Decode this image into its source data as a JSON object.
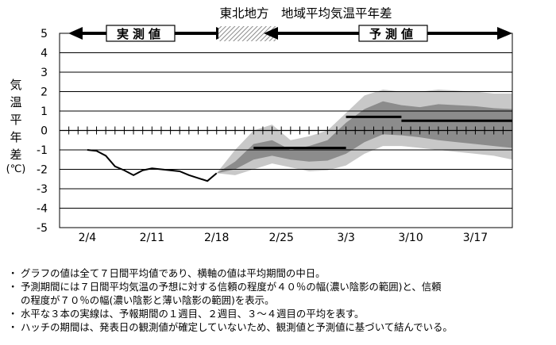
{
  "chart_data": {
    "type": "line",
    "title": "東北地方　地域平均気温平年差",
    "ylabel_chars": [
      "気",
      "温",
      "平",
      "年",
      "差"
    ],
    "yunit": "(℃)",
    "ylim": [
      -5,
      5
    ],
    "yticks": [
      "5",
      "4",
      "3",
      "2",
      "1",
      "0",
      "-1",
      "-2",
      "-3",
      "-4",
      "-5"
    ],
    "xlim": [
      "2/1",
      "3/21"
    ],
    "xtick_labels": [
      {
        "label": "2/4",
        "date": "2/4"
      },
      {
        "label": "2/11",
        "date": "2/11"
      },
      {
        "label": "2/18",
        "date": "2/18"
      },
      {
        "label": "2/25",
        "date": "2/25"
      },
      {
        "label": "3/3",
        "date": "3/3"
      },
      {
        "label": "3/10",
        "date": "3/10"
      },
      {
        "label": "3/17",
        "date": "3/17"
      }
    ],
    "grid": true,
    "period_labels": {
      "observed": "実測値",
      "forecast": "予測値"
    },
    "observed": {
      "x": [
        "2/4",
        "2/5",
        "2/6",
        "2/7",
        "2/8",
        "2/9",
        "2/10",
        "2/11",
        "2/12",
        "2/13",
        "2/14",
        "2/15",
        "2/16",
        "2/17",
        "2/18"
      ],
      "y": [
        -1.0,
        -1.05,
        -1.3,
        -1.85,
        -2.05,
        -2.3,
        -2.05,
        -1.95,
        -2.0,
        -2.05,
        -2.1,
        -2.3,
        -2.45,
        -2.6,
        -2.2
      ]
    },
    "hatch_period": {
      "start": "2/18",
      "end": "2/25"
    },
    "band_70": {
      "x": [
        "2/18",
        "2/20",
        "2/22",
        "2/24",
        "2/26",
        "2/28",
        "3/1",
        "3/3",
        "3/5",
        "3/7",
        "3/9",
        "3/11",
        "3/13",
        "3/15",
        "3/17",
        "3/19",
        "3/21"
      ],
      "upper": [
        -2.2,
        -1.0,
        0.0,
        0.3,
        -0.5,
        -0.3,
        0.0,
        0.9,
        1.8,
        2.1,
        2.0,
        2.0,
        2.1,
        2.05,
        2.0,
        1.9,
        1.9
      ],
      "lower": [
        -2.2,
        -2.3,
        -2.0,
        -1.7,
        -1.9,
        -2.1,
        -2.05,
        -1.8,
        -1.2,
        -0.8,
        -0.8,
        -0.9,
        -1.0,
        -1.1,
        -1.2,
        -1.3,
        -1.5
      ]
    },
    "band_40": {
      "x": [
        "2/18",
        "2/20",
        "2/22",
        "2/24",
        "2/26",
        "2/28",
        "3/1",
        "3/3",
        "3/5",
        "3/7",
        "3/9",
        "3/11",
        "3/13",
        "3/15",
        "3/17",
        "3/19",
        "3/21"
      ],
      "upper": [
        -2.2,
        -1.6,
        -0.7,
        -0.5,
        -1.0,
        -0.8,
        -0.5,
        0.4,
        1.1,
        1.5,
        1.3,
        1.2,
        1.35,
        1.3,
        1.25,
        1.15,
        1.1
      ],
      "lower": [
        -2.2,
        -2.0,
        -1.5,
        -1.3,
        -1.5,
        -1.6,
        -1.55,
        -1.2,
        -0.6,
        -0.2,
        -0.25,
        -0.35,
        -0.5,
        -0.6,
        -0.7,
        -0.8,
        -0.9
      ]
    },
    "weekly_means": [
      {
        "label": "1週目",
        "start": "2/22",
        "end": "3/3",
        "value": -0.9
      },
      {
        "label": "2週目",
        "start": "3/3",
        "end": "3/9",
        "value": 0.7
      },
      {
        "label": "3〜4週目",
        "start": "3/9",
        "end": "3/21",
        "value": 0.5
      }
    ]
  },
  "notes": [
    "グラフの値は全て７日間平均値であり、横軸の値は平均期間の中日。",
    "予測期間には７日間平均気温の予想に対する信頼の程度が４０％の幅(濃い陰影の範囲)と、信頼",
    "の程度が７０％の幅(濃い陰影と薄い陰影の範囲)を表示。",
    "水平な３本の実線は、予報期間の１週目、２週目、３～４週目の平均を表す。",
    "ハッチの期間は、発表日の観測値が確定していないため、観測値と予測値に基づいて結んでいる。"
  ],
  "note_bullet": "・",
  "colors": {
    "band_70": "#c8c8c8",
    "band_40": "#8c8c8c",
    "line": "#000000",
    "grid": "#000000",
    "hatch": "#9a9a9a"
  }
}
